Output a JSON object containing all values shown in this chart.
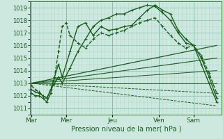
{
  "title": "",
  "xlabel": "Pression niveau de la mer( hPa )",
  "bg_color": "#cce8df",
  "grid_color_minor": "#b5d9ce",
  "grid_color_major": "#8ec4b8",
  "line_color": "#1a5c1a",
  "ylim": [
    1010.5,
    1019.5
  ],
  "yticks": [
    1011,
    1012,
    1013,
    1014,
    1015,
    1016,
    1017,
    1018,
    1019
  ],
  "day_labels": [
    "Mar",
    "Mer",
    "Jeu",
    "Ven",
    "Sam"
  ],
  "day_positions": [
    0,
    54,
    126,
    198,
    252
  ],
  "xlim": [
    -2,
    296
  ],
  "lines": [
    {
      "x": [
        0,
        6,
        12,
        18,
        24,
        30,
        36,
        42,
        48,
        60,
        72,
        84,
        96,
        108,
        120,
        132,
        144,
        156,
        168,
        180,
        192,
        204,
        216,
        228,
        240,
        252,
        264,
        276,
        288
      ],
      "y": [
        1012.2,
        1012.0,
        1012.0,
        1011.8,
        1011.5,
        1012.2,
        1013.5,
        1014.5,
        1013.5,
        1015.5,
        1017.5,
        1017.8,
        1016.8,
        1017.5,
        1017.2,
        1017.3,
        1017.5,
        1017.6,
        1018.2,
        1018.8,
        1019.2,
        1018.8,
        1018.5,
        1017.2,
        1016.5,
        1016.0,
        1014.5,
        1013.0,
        1011.5
      ],
      "style": "-",
      "marker": "+",
      "lw": 1.0,
      "ms": 3.5
    },
    {
      "x": [
        0,
        6,
        12,
        18,
        24,
        30,
        36,
        42,
        48,
        60,
        72,
        84,
        96,
        108,
        120,
        132,
        144,
        156,
        168,
        180,
        192,
        204,
        216,
        228,
        240,
        252,
        264,
        276,
        288
      ],
      "y": [
        1012.5,
        1012.3,
        1012.2,
        1012.0,
        1011.8,
        1012.5,
        1013.0,
        1013.5,
        1013.0,
        1014.2,
        1015.5,
        1016.5,
        1017.5,
        1018.0,
        1018.2,
        1018.5,
        1018.5,
        1018.8,
        1019.0,
        1019.2,
        1019.1,
        1018.6,
        1018.0,
        1017.0,
        1016.2,
        1016.0,
        1015.0,
        1013.5,
        1011.8
      ],
      "style": "-",
      "marker": "+",
      "lw": 1.0,
      "ms": 3.5
    },
    {
      "x": [
        0,
        6,
        12,
        18,
        24,
        30,
        36,
        42,
        48,
        54,
        60,
        72,
        84,
        96,
        108,
        120,
        132,
        144,
        156,
        168,
        180,
        192,
        204,
        216,
        228,
        240,
        252,
        264,
        276,
        288
      ],
      "y": [
        1012.8,
        1012.5,
        1012.3,
        1012.0,
        1011.8,
        1012.5,
        1013.5,
        1015.5,
        1017.5,
        1017.8,
        1016.8,
        1016.2,
        1015.8,
        1016.5,
        1017.0,
        1016.8,
        1017.0,
        1017.2,
        1017.5,
        1017.8,
        1018.0,
        1018.2,
        1017.5,
        1016.8,
        1016.2,
        1015.8,
        1016.0,
        1015.2,
        1013.8,
        1012.2
      ],
      "style": "--",
      "marker": "+",
      "lw": 1.0,
      "ms": 3.5
    },
    {
      "x": [
        0,
        288
      ],
      "y": [
        1013.0,
        1016.0
      ],
      "style": "-",
      "marker": null,
      "lw": 0.9,
      "ms": 0
    },
    {
      "x": [
        0,
        288
      ],
      "y": [
        1013.0,
        1015.0
      ],
      "style": "-",
      "marker": null,
      "lw": 0.8,
      "ms": 0
    },
    {
      "x": [
        0,
        288
      ],
      "y": [
        1013.0,
        1014.0
      ],
      "style": "-",
      "marker": null,
      "lw": 0.7,
      "ms": 0
    },
    {
      "x": [
        0,
        288
      ],
      "y": [
        1013.0,
        1013.0
      ],
      "style": "-",
      "marker": null,
      "lw": 0.7,
      "ms": 0
    },
    {
      "x": [
        0,
        288
      ],
      "y": [
        1013.0,
        1012.2
      ],
      "style": "--",
      "marker": null,
      "lw": 0.7,
      "ms": 0
    },
    {
      "x": [
        0,
        288
      ],
      "y": [
        1013.0,
        1011.2
      ],
      "style": "--",
      "marker": null,
      "lw": 0.7,
      "ms": 0
    }
  ]
}
